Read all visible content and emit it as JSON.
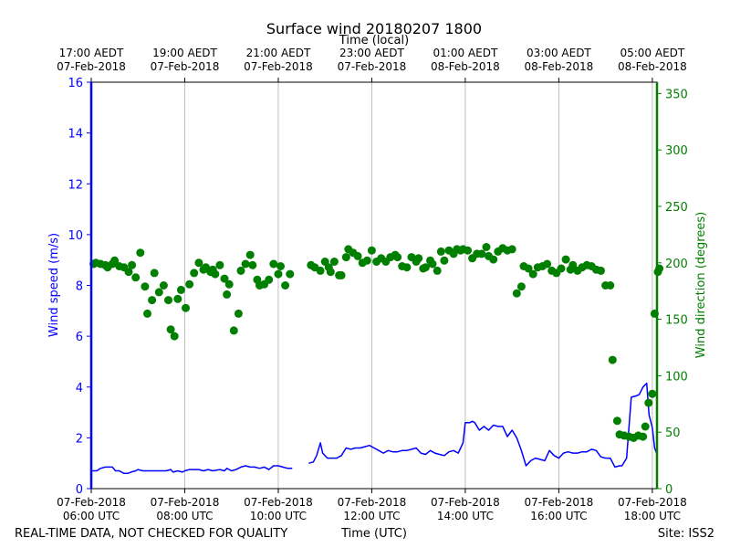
{
  "chart_data": {
    "type": "line+scatter",
    "title": "Surface wind 20180207 1800",
    "top_axis_label": "Time (local)",
    "xlabel": "Time (UTC)",
    "ylabel_left": "Wind speed (m/s)",
    "ylabel_right": "Wind direction (degrees)",
    "footer_left": "REAL-TIME DATA, NOT CHECKED FOR QUALITY",
    "footer_right": "Site: ISS2",
    "x_unit": "hours since 07-Feb-2018 06:00 UTC",
    "xlim": [
      0,
      12.1
    ],
    "ylim_left": [
      0,
      16
    ],
    "ylim_right": [
      0,
      360
    ],
    "yticks_left": [
      0,
      2,
      4,
      6,
      8,
      10,
      12,
      14,
      16
    ],
    "yticks_right": [
      0,
      50,
      100,
      150,
      200,
      250,
      300,
      350
    ],
    "xticks_bottom": [
      {
        "x": 0,
        "line1": "07-Feb-2018",
        "line2": "06:00 UTC"
      },
      {
        "x": 2,
        "line1": "07-Feb-2018",
        "line2": "08:00 UTC"
      },
      {
        "x": 4,
        "line1": "07-Feb-2018",
        "line2": "10:00 UTC"
      },
      {
        "x": 6,
        "line1": "07-Feb-2018",
        "line2": "12:00 UTC"
      },
      {
        "x": 8,
        "line1": "07-Feb-2018",
        "line2": "14:00 UTC"
      },
      {
        "x": 10,
        "line1": "07-Feb-2018",
        "line2": "16:00 UTC"
      },
      {
        "x": 12,
        "line1": "07-Feb-2018",
        "line2": "18:00 UTC"
      }
    ],
    "xticks_top": [
      {
        "x": 0,
        "line1": "17:00 AEDT",
        "line2": "07-Feb-2018"
      },
      {
        "x": 2,
        "line1": "19:00 AEDT",
        "line2": "07-Feb-2018"
      },
      {
        "x": 4,
        "line1": "21:00 AEDT",
        "line2": "07-Feb-2018"
      },
      {
        "x": 6,
        "line1": "23:00 AEDT",
        "line2": "07-Feb-2018"
      },
      {
        "x": 8,
        "line1": "01:00 AEDT",
        "line2": "08-Feb-2018"
      },
      {
        "x": 10,
        "line1": "03:00 AEDT",
        "line2": "08-Feb-2018"
      },
      {
        "x": 12,
        "line1": "05:00 AEDT",
        "line2": "08-Feb-2018"
      }
    ],
    "grid": "vertical",
    "series": [
      {
        "name": "Wind speed",
        "kind": "line",
        "axis": "left",
        "color": "#0000ff",
        "segments": [
          [
            [
              0,
              0.7
            ],
            [
              0.12,
              0.7
            ],
            [
              0.2,
              0.8
            ],
            [
              0.3,
              0.85
            ],
            [
              0.45,
              0.85
            ],
            [
              0.52,
              0.7
            ],
            [
              0.6,
              0.7
            ],
            [
              0.7,
              0.6
            ],
            [
              0.78,
              0.6
            ],
            [
              0.85,
              0.65
            ],
            [
              0.95,
              0.7
            ],
            [
              1.0,
              0.75
            ],
            [
              1.1,
              0.7
            ],
            [
              1.3,
              0.7
            ],
            [
              1.45,
              0.7
            ],
            [
              1.6,
              0.7
            ],
            [
              1.7,
              0.75
            ],
            [
              1.75,
              0.65
            ],
            [
              1.85,
              0.7
            ],
            [
              1.95,
              0.65
            ],
            [
              2.0,
              0.7
            ],
            [
              2.1,
              0.75
            ],
            [
              2.2,
              0.75
            ],
            [
              2.3,
              0.75
            ],
            [
              2.4,
              0.7
            ],
            [
              2.5,
              0.75
            ],
            [
              2.6,
              0.7
            ],
            [
              2.75,
              0.75
            ],
            [
              2.85,
              0.7
            ],
            [
              2.9,
              0.8
            ],
            [
              3.0,
              0.7
            ],
            [
              3.1,
              0.75
            ],
            [
              3.2,
              0.85
            ],
            [
              3.3,
              0.9
            ],
            [
              3.4,
              0.85
            ],
            [
              3.5,
              0.85
            ],
            [
              3.6,
              0.8
            ],
            [
              3.7,
              0.85
            ],
            [
              3.8,
              0.75
            ],
            [
              3.9,
              0.9
            ],
            [
              4.0,
              0.9
            ],
            [
              4.1,
              0.85
            ],
            [
              4.2,
              0.8
            ],
            [
              4.3,
              0.8
            ]
          ],
          [
            [
              4.65,
              1.0
            ],
            [
              4.75,
              1.05
            ],
            [
              4.82,
              1.3
            ],
            [
              4.9,
              1.8
            ],
            [
              4.95,
              1.4
            ],
            [
              5.05,
              1.2
            ],
            [
              5.15,
              1.2
            ],
            [
              5.25,
              1.2
            ],
            [
              5.35,
              1.3
            ],
            [
              5.45,
              1.6
            ],
            [
              5.55,
              1.55
            ],
            [
              5.65,
              1.6
            ],
            [
              5.75,
              1.6
            ],
            [
              5.85,
              1.65
            ],
            [
              5.95,
              1.7
            ],
            [
              6.05,
              1.6
            ],
            [
              6.15,
              1.5
            ],
            [
              6.25,
              1.4
            ],
            [
              6.35,
              1.5
            ],
            [
              6.45,
              1.45
            ],
            [
              6.55,
              1.45
            ],
            [
              6.65,
              1.5
            ],
            [
              6.75,
              1.5
            ],
            [
              6.85,
              1.55
            ],
            [
              6.95,
              1.6
            ],
            [
              7.05,
              1.4
            ],
            [
              7.15,
              1.35
            ],
            [
              7.25,
              1.5
            ],
            [
              7.35,
              1.4
            ],
            [
              7.45,
              1.35
            ],
            [
              7.55,
              1.3
            ],
            [
              7.65,
              1.45
            ],
            [
              7.75,
              1.5
            ],
            [
              7.85,
              1.4
            ],
            [
              7.9,
              1.6
            ],
            [
              7.95,
              1.8
            ],
            [
              8.0,
              2.6
            ],
            [
              8.1,
              2.6
            ],
            [
              8.15,
              2.65
            ],
            [
              8.2,
              2.6
            ],
            [
              8.3,
              2.3
            ],
            [
              8.4,
              2.45
            ],
            [
              8.5,
              2.3
            ],
            [
              8.6,
              2.5
            ],
            [
              8.7,
              2.45
            ],
            [
              8.8,
              2.45
            ],
            [
              8.9,
              2.05
            ],
            [
              9.0,
              2.3
            ],
            [
              9.1,
              2.0
            ],
            [
              9.2,
              1.5
            ],
            [
              9.3,
              0.9
            ],
            [
              9.4,
              1.1
            ],
            [
              9.5,
              1.2
            ],
            [
              9.6,
              1.15
            ],
            [
              9.7,
              1.1
            ],
            [
              9.8,
              1.5
            ],
            [
              9.9,
              1.3
            ],
            [
              10.0,
              1.2
            ],
            [
              10.1,
              1.4
            ],
            [
              10.2,
              1.45
            ],
            [
              10.3,
              1.4
            ],
            [
              10.4,
              1.4
            ],
            [
              10.5,
              1.45
            ],
            [
              10.6,
              1.45
            ],
            [
              10.7,
              1.55
            ],
            [
              10.8,
              1.5
            ],
            [
              10.9,
              1.25
            ],
            [
              11.0,
              1.2
            ],
            [
              11.1,
              1.2
            ],
            [
              11.2,
              0.85
            ],
            [
              11.3,
              0.9
            ],
            [
              11.35,
              0.9
            ],
            [
              11.45,
              1.2
            ],
            [
              11.55,
              3.6
            ],
            [
              11.65,
              3.65
            ],
            [
              11.72,
              3.7
            ],
            [
              11.8,
              4.0
            ],
            [
              11.88,
              4.15
            ],
            [
              11.93,
              2.9
            ],
            [
              12.0,
              2.4
            ],
            [
              12.05,
              1.6
            ],
            [
              12.1,
              1.35
            ]
          ]
        ]
      },
      {
        "name": "Wind direction",
        "kind": "scatter",
        "axis": "right",
        "color": "#007f00",
        "points": [
          [
            0.05,
            199
          ],
          [
            0.1,
            200
          ],
          [
            0.2,
            199
          ],
          [
            0.3,
            198
          ],
          [
            0.35,
            196
          ],
          [
            0.45,
            199
          ],
          [
            0.5,
            202
          ],
          [
            0.6,
            197
          ],
          [
            0.7,
            196
          ],
          [
            0.8,
            192
          ],
          [
            0.87,
            198
          ],
          [
            0.95,
            187
          ],
          [
            1.05,
            209
          ],
          [
            1.15,
            179
          ],
          [
            1.2,
            155
          ],
          [
            1.3,
            167
          ],
          [
            1.35,
            191
          ],
          [
            1.45,
            174
          ],
          [
            1.55,
            180
          ],
          [
            1.65,
            167
          ],
          [
            1.7,
            141
          ],
          [
            1.78,
            135
          ],
          [
            1.85,
            168
          ],
          [
            1.92,
            176
          ],
          [
            2.02,
            160
          ],
          [
            2.1,
            181
          ],
          [
            2.2,
            191
          ],
          [
            2.3,
            200
          ],
          [
            2.4,
            194
          ],
          [
            2.45,
            196
          ],
          [
            2.55,
            192
          ],
          [
            2.6,
            194
          ],
          [
            2.65,
            190
          ],
          [
            2.75,
            198
          ],
          [
            2.85,
            186
          ],
          [
            2.9,
            172
          ],
          [
            2.95,
            181
          ],
          [
            3.05,
            140
          ],
          [
            3.15,
            155
          ],
          [
            3.2,
            193
          ],
          [
            3.3,
            199
          ],
          [
            3.4,
            207
          ],
          [
            3.45,
            198
          ],
          [
            3.55,
            185
          ],
          [
            3.6,
            180
          ],
          [
            3.7,
            181
          ],
          [
            3.8,
            185
          ],
          [
            3.9,
            199
          ],
          [
            4.0,
            190
          ],
          [
            4.05,
            197
          ],
          [
            4.15,
            180
          ],
          [
            4.25,
            190
          ],
          [
            4.7,
            198
          ],
          [
            4.78,
            196
          ],
          [
            4.9,
            193
          ],
          [
            5.0,
            201
          ],
          [
            5.08,
            196
          ],
          [
            5.12,
            192
          ],
          [
            5.2,
            201
          ],
          [
            5.3,
            189
          ],
          [
            5.35,
            189
          ],
          [
            5.45,
            205
          ],
          [
            5.5,
            212
          ],
          [
            5.6,
            209
          ],
          [
            5.7,
            206
          ],
          [
            5.8,
            200
          ],
          [
            5.9,
            202
          ],
          [
            6.0,
            211
          ],
          [
            6.1,
            201
          ],
          [
            6.2,
            204
          ],
          [
            6.3,
            201
          ],
          [
            6.4,
            205
          ],
          [
            6.5,
            207
          ],
          [
            6.55,
            205
          ],
          [
            6.65,
            197
          ],
          [
            6.75,
            196
          ],
          [
            6.85,
            205
          ],
          [
            6.95,
            201
          ],
          [
            7.0,
            204
          ],
          [
            7.1,
            195
          ],
          [
            7.15,
            196
          ],
          [
            7.25,
            202
          ],
          [
            7.3,
            199
          ],
          [
            7.4,
            193
          ],
          [
            7.48,
            210
          ],
          [
            7.55,
            202
          ],
          [
            7.65,
            211
          ],
          [
            7.75,
            208
          ],
          [
            7.82,
            212
          ],
          [
            7.9,
            211
          ],
          [
            7.95,
            212
          ],
          [
            8.05,
            211
          ],
          [
            8.15,
            204
          ],
          [
            8.25,
            208
          ],
          [
            8.35,
            208
          ],
          [
            8.45,
            214
          ],
          [
            8.5,
            206
          ],
          [
            8.6,
            203
          ],
          [
            8.7,
            210
          ],
          [
            8.8,
            213
          ],
          [
            8.9,
            211
          ],
          [
            9.0,
            212
          ],
          [
            9.1,
            173
          ],
          [
            9.2,
            179
          ],
          [
            9.25,
            197
          ],
          [
            9.35,
            195
          ],
          [
            9.45,
            190
          ],
          [
            9.55,
            196
          ],
          [
            9.65,
            197
          ],
          [
            9.75,
            199
          ],
          [
            9.85,
            193
          ],
          [
            9.95,
            191
          ],
          [
            10.05,
            195
          ],
          [
            10.15,
            203
          ],
          [
            10.25,
            194
          ],
          [
            10.3,
            198
          ],
          [
            10.4,
            193
          ],
          [
            10.5,
            196
          ],
          [
            10.6,
            198
          ],
          [
            10.7,
            197
          ],
          [
            10.8,
            194
          ],
          [
            10.9,
            193
          ],
          [
            11.0,
            180
          ],
          [
            11.1,
            180
          ],
          [
            11.15,
            114
          ],
          [
            11.25,
            60
          ],
          [
            11.3,
            48
          ],
          [
            11.4,
            47
          ],
          [
            11.5,
            46
          ],
          [
            11.6,
            45
          ],
          [
            11.7,
            47
          ],
          [
            11.8,
            46
          ],
          [
            11.85,
            55
          ],
          [
            11.92,
            76
          ],
          [
            12.0,
            84
          ],
          [
            12.05,
            155
          ],
          [
            12.12,
            192
          ],
          [
            12.15,
            195
          ]
        ]
      }
    ]
  }
}
